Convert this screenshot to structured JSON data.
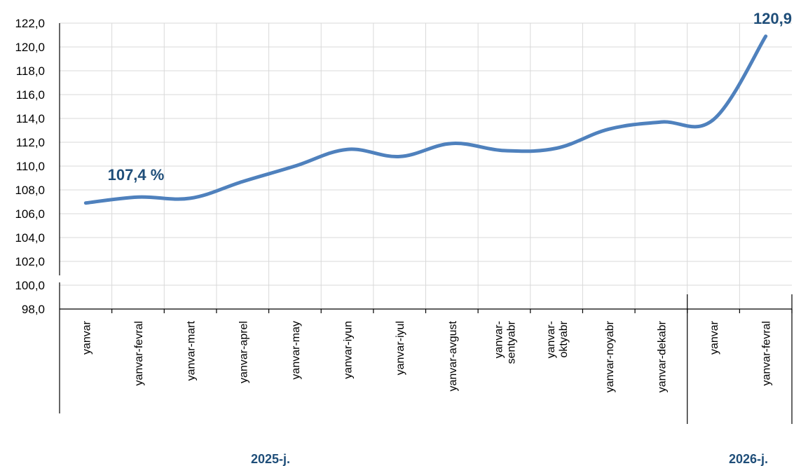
{
  "chart_data": {
    "type": "line",
    "categories": [
      "yanvar",
      "yanvar-fevral",
      "yanvar-mart",
      "yanvar-aprel",
      "yanvar-may",
      "yanvar-iyun",
      "yanvar-iyul",
      "yanvar-avgust",
      "yanvar-\nsentyabr",
      "yanvar-\noktyabr",
      "yanvar-noyabr",
      "yanvar-dekabr",
      "yanvar",
      "yanvar-fevral"
    ],
    "groups": [
      {
        "label": "2025-j.",
        "start": 0,
        "end": 11
      },
      {
        "label": "2026-j.",
        "start": 12,
        "end": 13
      }
    ],
    "series": [
      {
        "values": [
          106.9,
          107.4,
          107.3,
          108.7,
          110.0,
          111.4,
          110.8,
          111.9,
          111.3,
          111.5,
          113.1,
          113.7,
          113.9,
          120.9
        ],
        "color": "#4f81bd"
      }
    ],
    "ylim": [
      98.0,
      122.0
    ],
    "yticks": [
      "98,0",
      "100,0",
      "102,0",
      "104,0",
      "106,0",
      "108,0",
      "110,0",
      "112,0",
      "114,0",
      "116,0",
      "118,0",
      "120,0",
      "122,0"
    ],
    "annotations": [
      {
        "text": "107,4 %",
        "point": 1
      },
      {
        "text": "120,9",
        "point": 13
      }
    ],
    "grid": true,
    "title": "",
    "xlabel": "",
    "ylabel": ""
  }
}
